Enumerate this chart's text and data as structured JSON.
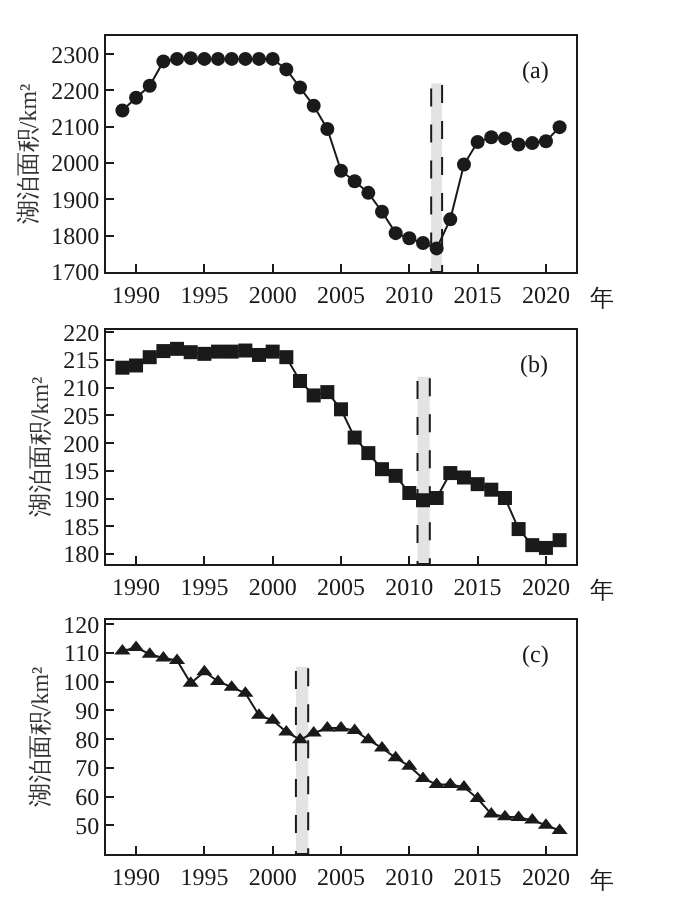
{
  "chart_data": [
    {
      "type": "line",
      "marker": "circle",
      "xlabel": "年",
      "ylabel": "湖泊面积/km²",
      "annotations": [
        "(a)"
      ],
      "x": [
        1989,
        1990,
        1991,
        1992,
        1993,
        1994,
        1995,
        1996,
        1997,
        1998,
        1999,
        2000,
        2001,
        2002,
        2003,
        2004,
        2005,
        2006,
        2007,
        2008,
        2009,
        2010,
        2011,
        2012,
        2013,
        2014,
        2015,
        2016,
        2017,
        2018,
        2019,
        2020,
        2021
      ],
      "series": [
        {
          "color": "#1a1a1a",
          "values": [
            2145,
            2180,
            2213,
            2280,
            2287,
            2289,
            2287,
            2287,
            2287,
            2287,
            2287,
            2287,
            2258,
            2208,
            2158,
            2094,
            1979,
            1950,
            1918,
            1866,
            1807,
            1793,
            1780,
            1765,
            1845,
            1996,
            2058,
            2071,
            2068,
            2051,
            2055,
            2060,
            2099
          ]
        }
      ],
      "xlim": [
        1987.8,
        2022.2
      ],
      "xticks": [
        1990,
        1995,
        2000,
        2005,
        2010,
        2015,
        2020
      ],
      "ylim": [
        1700,
        2350
      ],
      "yticks": [
        1700,
        1800,
        1900,
        2000,
        2100,
        2200,
        2300
      ],
      "bands": [
        {
          "axis": "x",
          "from": 2011.6,
          "to": 2012.4,
          "color": "#1a1a1a"
        }
      ]
    },
    {
      "type": "line",
      "marker": "square",
      "xlabel": "年",
      "ylabel": "湖泊面积/km²",
      "annotations": [
        "(b)"
      ],
      "x": [
        1989,
        1990,
        1991,
        1992,
        1993,
        1994,
        1995,
        1996,
        1997,
        1998,
        1999,
        2000,
        2001,
        2002,
        2003,
        2004,
        2005,
        2006,
        2007,
        2008,
        2009,
        2010,
        2011,
        2012,
        2013,
        2014,
        2015,
        2016,
        2017,
        2018,
        2019,
        2020,
        2021
      ],
      "series": [
        {
          "color": "#1a1a1a",
          "values": [
            213.6,
            214.0,
            215.5,
            216.6,
            217.0,
            216.4,
            216.1,
            216.5,
            216.5,
            216.7,
            215.9,
            216.5,
            215.5,
            211.2,
            208.6,
            209.2,
            206.1,
            201.0,
            198.2,
            195.3,
            194.1,
            191.0,
            189.7,
            190.1,
            194.6,
            193.8,
            192.6,
            191.6,
            190.1,
            184.5,
            181.6,
            181.1,
            182.5
          ]
        }
      ],
      "xlim": [
        1987.8,
        2022.2
      ],
      "xticks": [
        1990,
        1995,
        2000,
        2005,
        2010,
        2015,
        2020
      ],
      "ylim": [
        178.2,
        220.4
      ],
      "yticks": [
        180,
        185,
        190,
        195,
        200,
        205,
        210,
        215,
        220
      ],
      "bands": [
        {
          "axis": "x",
          "from": 2010.6,
          "to": 2011.5,
          "color": "#1a1a1a"
        }
      ]
    },
    {
      "type": "line",
      "marker": "triangle",
      "xlabel": "年",
      "ylabel": "湖泊面积/km²",
      "annotations": [
        "(c)"
      ],
      "x": [
        1989,
        1990,
        1991,
        1992,
        1993,
        1994,
        1995,
        1996,
        1997,
        1998,
        1999,
        2000,
        2001,
        2002,
        2003,
        2004,
        2005,
        2006,
        2007,
        2008,
        2009,
        2010,
        2011,
        2012,
        2013,
        2014,
        2015,
        2016,
        2017,
        2018,
        2019,
        2020,
        2021
      ],
      "series": [
        {
          "color": "#1a1a1a",
          "values": [
            110.7,
            111.9,
            109.6,
            108.3,
            107.4,
            99.5,
            103.5,
            100.1,
            98.1,
            96.0,
            88.3,
            86.6,
            82.5,
            79.8,
            82.1,
            83.9,
            83.9,
            83.0,
            79.8,
            76.9,
            73.5,
            70.6,
            66.3,
            64.2,
            64.2,
            63.3,
            59.3,
            53.9,
            53.0,
            52.7,
            51.8,
            50.0,
            48.2
          ]
        }
      ],
      "xlim": [
        1987.8,
        2022.2
      ],
      "xticks": [
        1990,
        1995,
        2000,
        2005,
        2010,
        2015,
        2020
      ],
      "ylim": [
        40,
        121.5
      ],
      "yticks": [
        50,
        60,
        70,
        80,
        90,
        100,
        110,
        120
      ],
      "bands": [
        {
          "axis": "x",
          "from": 2001.7,
          "to": 2002.6,
          "color": "#1a1a1a"
        }
      ]
    }
  ]
}
